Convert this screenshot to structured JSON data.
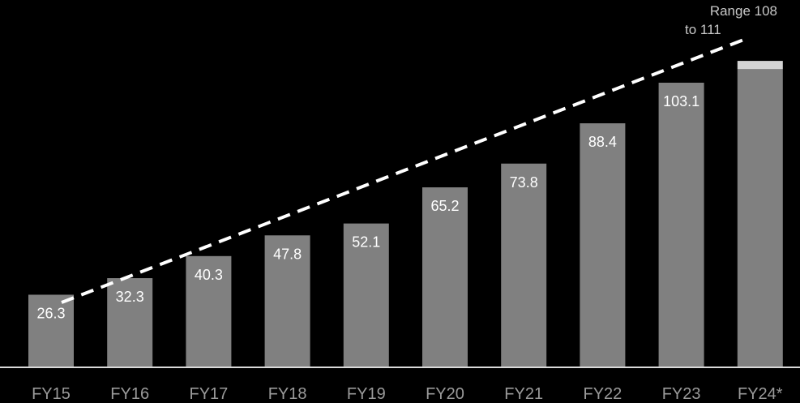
{
  "chart_data": {
    "type": "bar",
    "categories": [
      "FY15",
      "FY16",
      "FY17",
      "FY18",
      "FY19",
      "FY20",
      "FY21",
      "FY22",
      "FY23",
      "FY24*"
    ],
    "values": [
      26.3,
      32.3,
      40.3,
      47.8,
      52.1,
      65.2,
      73.8,
      88.4,
      103.1,
      108
    ],
    "value_labels": [
      "26.3",
      "32.3",
      "40.3",
      "47.8",
      "52.1",
      "65.2",
      "73.8",
      "88.4",
      "103.1",
      ""
    ],
    "range_band": {
      "category": "FY24*",
      "low": 108,
      "high": 111
    },
    "annotation": {
      "line1": "Range 108",
      "line2": "to 111"
    },
    "trend": "dashed-line",
    "ylim": [
      0,
      111
    ],
    "grid": false,
    "colors": {
      "background": "#000000",
      "bar": "#808080",
      "range_band": "#d4d4d4",
      "axis": "#d9d9d9",
      "trend": "#ffffff",
      "tick_text": "#9a9a9a",
      "value_text": "#ffffff"
    }
  }
}
